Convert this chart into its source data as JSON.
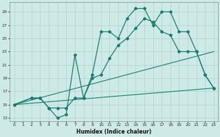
{
  "xlabel": "Humidex (Indice chaleur)",
  "background_color": "#ceeae6",
  "grid_color": "#b8d8d4",
  "line_color": "#1a7a6e",
  "xlim": [
    -0.5,
    23.5
  ],
  "ylim": [
    12.5,
    30.5
  ],
  "xticks": [
    0,
    1,
    2,
    3,
    4,
    5,
    6,
    7,
    8,
    9,
    10,
    11,
    12,
    13,
    14,
    15,
    16,
    17,
    18,
    19,
    20,
    21,
    22,
    23
  ],
  "yticks": [
    13,
    15,
    17,
    19,
    21,
    23,
    25,
    27,
    29
  ],
  "series": [
    {
      "x": [
        0,
        2,
        3,
        4,
        5,
        6,
        7,
        8,
        9,
        10,
        11,
        12,
        13,
        14,
        15,
        16,
        17,
        18,
        19,
        20,
        21,
        22,
        23
      ],
      "y": [
        15,
        16,
        16,
        14.5,
        13,
        13.5,
        22.5,
        16,
        19.5,
        26,
        26,
        25,
        28,
        29.5,
        29.5,
        27,
        29,
        29,
        26,
        26,
        23,
        19.5,
        17.5
      ],
      "has_markers": true
    },
    {
      "x": [
        0,
        2,
        3,
        4,
        5,
        6,
        7,
        8,
        9,
        10,
        11,
        12,
        13,
        14,
        15,
        16,
        17,
        18,
        19,
        20,
        21,
        22,
        23
      ],
      "y": [
        15,
        16,
        16,
        14.5,
        14.5,
        14.5,
        16,
        16,
        19,
        19.5,
        22,
        24,
        25,
        26.5,
        28,
        27.5,
        26,
        25.5,
        23,
        23,
        23,
        19.5,
        17.5
      ],
      "has_markers": true
    },
    {
      "x": [
        0,
        23
      ],
      "y": [
        15,
        23
      ],
      "has_markers": false
    },
    {
      "x": [
        0,
        23
      ],
      "y": [
        15,
        17.5
      ],
      "has_markers": false
    }
  ]
}
